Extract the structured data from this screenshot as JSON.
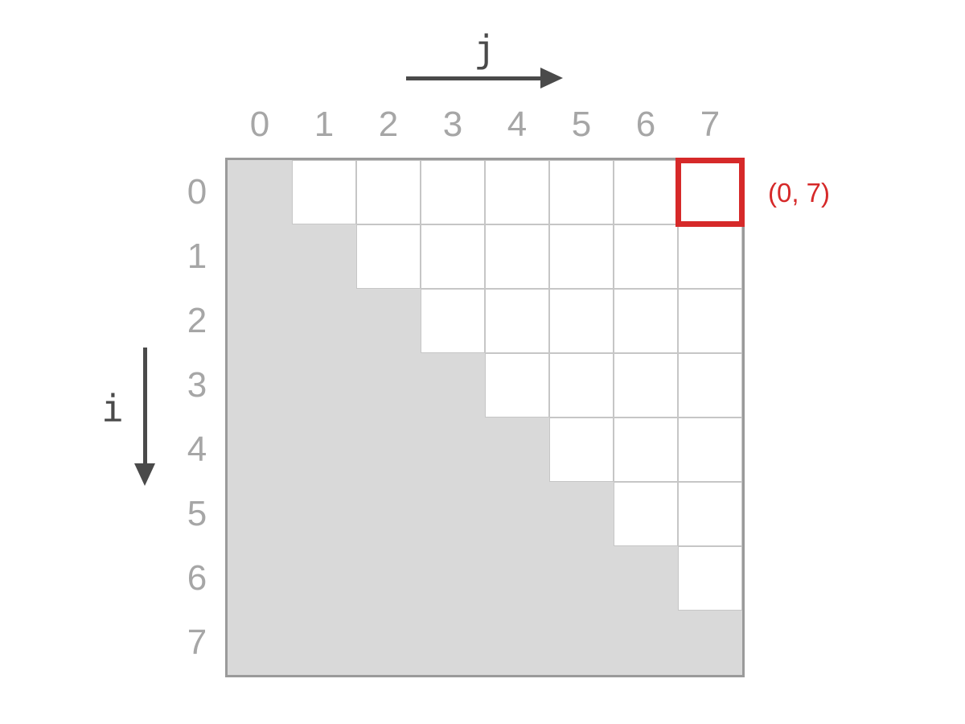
{
  "axes": {
    "col_axis_label": "j",
    "row_axis_label": "i"
  },
  "grid": {
    "rows": 8,
    "cols": 8,
    "col_labels": [
      "0",
      "1",
      "2",
      "3",
      "4",
      "5",
      "6",
      "7"
    ],
    "row_labels": [
      "0",
      "1",
      "2",
      "3",
      "4",
      "5",
      "6",
      "7"
    ],
    "cells": [
      [
        "g",
        "w",
        "w",
        "w",
        "w",
        "w",
        "w",
        "w"
      ],
      [
        "g",
        "g",
        "w",
        "w",
        "w",
        "w",
        "w",
        "w"
      ],
      [
        "g",
        "g",
        "g",
        "w",
        "w",
        "w",
        "w",
        "w"
      ],
      [
        "g",
        "g",
        "g",
        "g",
        "w",
        "w",
        "w",
        "w"
      ],
      [
        "g",
        "g",
        "g",
        "g",
        "g",
        "w",
        "w",
        "w"
      ],
      [
        "g",
        "g",
        "g",
        "g",
        "g",
        "g",
        "w",
        "w"
      ],
      [
        "g",
        "g",
        "g",
        "g",
        "g",
        "g",
        "g",
        "w"
      ],
      [
        "g",
        "g",
        "g",
        "g",
        "g",
        "g",
        "g",
        "g"
      ]
    ]
  },
  "highlight": {
    "row": 0,
    "col": 7,
    "label": "(0, 7)"
  },
  "colors": {
    "highlight_red": "#d62929",
    "cell_gray": "#d9d9d9",
    "gridline": "#c6c6c6",
    "outer_border": "#9a9a9a",
    "axis_arrow": "#4a4a4a",
    "index_label": "#a6a6a6"
  }
}
